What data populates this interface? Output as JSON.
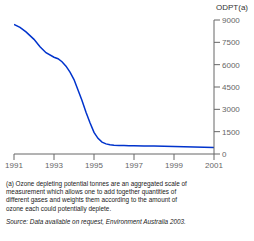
{
  "chart_data": {
    "type": "line",
    "x": [
      1991,
      1991.3,
      1991.6,
      1992,
      1992.3,
      1992.6,
      1993,
      1993.2,
      1993.4,
      1993.6,
      1993.8,
      1994,
      1994.2,
      1994.4,
      1994.6,
      1994.8,
      1995,
      1995.2,
      1995.4,
      1995.6,
      1995.8,
      1996,
      1996.25,
      1996.5,
      1996.75,
      1997,
      1997.5,
      1998,
      1998.5,
      1999,
      1999.5,
      2000,
      2000.5,
      2001
    ],
    "values": [
      8700,
      8500,
      8200,
      7700,
      7200,
      6800,
      6500,
      6400,
      6200,
      5900,
      5500,
      5000,
      4300,
      3600,
      2800,
      2100,
      1450,
      1050,
      800,
      680,
      620,
      590,
      575,
      565,
      560,
      555,
      545,
      535,
      525,
      505,
      490,
      470,
      450,
      430
    ],
    "color": "#0033cc",
    "xlim": [
      1991,
      2001
    ],
    "ylim": [
      0,
      9000
    ],
    "xticks": [
      1991,
      1993,
      1995,
      1997,
      1999,
      2001
    ],
    "yticks": [
      0,
      1500,
      3000,
      4500,
      6000,
      7500,
      9000
    ],
    "ylabel": "ODPT(a)",
    "grid": false,
    "annotations": [
      "(a) Ozone depleting potential tonnes are an aggregated scale of\nmeasurement which allows one to add together quantities of\ndifferent gases and weights them according to the amount of\nozone each could potentially deplete.",
      "Source: Data available on request,  Environment Australia 2003."
    ]
  }
}
